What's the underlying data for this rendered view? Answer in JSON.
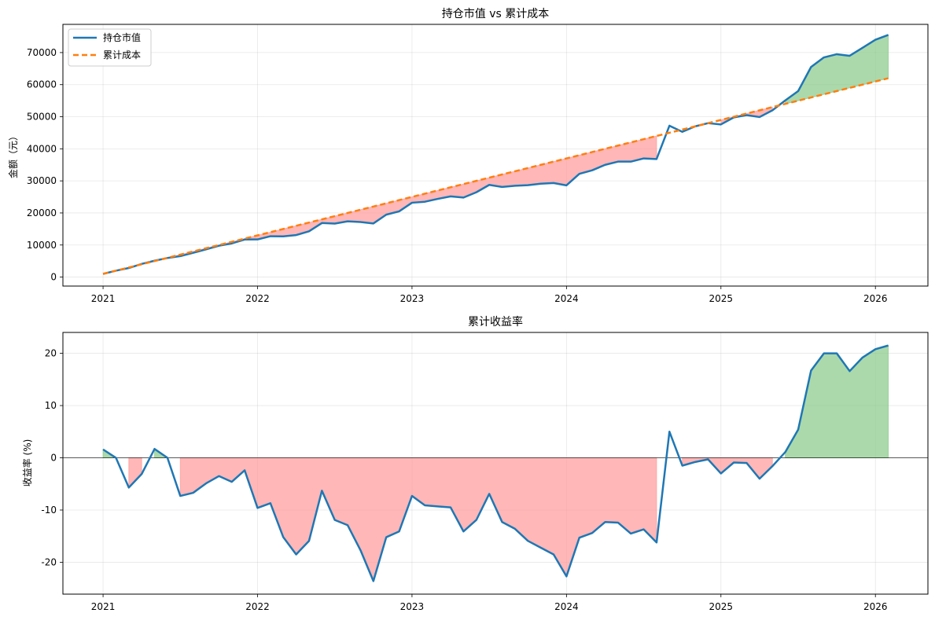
{
  "chart_data": [
    {
      "type": "line",
      "title": "持仓市值 vs 累计成本",
      "xlabel": "",
      "ylabel": "金额（元）",
      "xlim": [
        2020.74,
        2026.34
      ],
      "ylim": [
        -2800,
        78800
      ],
      "x_ticks": [
        {
          "value": 2021,
          "label": "2021"
        },
        {
          "value": 2022,
          "label": "2022"
        },
        {
          "value": 2023,
          "label": "2023"
        },
        {
          "value": 2024,
          "label": "2024"
        },
        {
          "value": 2025,
          "label": "2025"
        },
        {
          "value": 2026,
          "label": "2026"
        }
      ],
      "y_ticks": [
        {
          "value": 0,
          "label": "0"
        },
        {
          "value": 10000,
          "label": "10000"
        },
        {
          "value": 20000,
          "label": "20000"
        },
        {
          "value": 30000,
          "label": "30000"
        },
        {
          "value": 40000,
          "label": "40000"
        },
        {
          "value": 50000,
          "label": "50000"
        },
        {
          "value": 60000,
          "label": "60000"
        },
        {
          "value": 70000,
          "label": "70000"
        }
      ],
      "grid": true,
      "legend_position": "top-left",
      "start_date": "2021-01",
      "months": [
        "2021-01",
        "2021-02",
        "2021-03",
        "2021-04",
        "2021-05",
        "2021-06",
        "2021-07",
        "2021-08",
        "2021-09",
        "2021-10",
        "2021-11",
        "2021-12",
        "2022-01",
        "2022-02",
        "2022-03",
        "2022-04",
        "2022-05",
        "2022-06",
        "2022-07",
        "2022-08",
        "2022-09",
        "2022-10",
        "2022-11",
        "2022-12",
        "2023-01",
        "2023-02",
        "2023-03",
        "2023-04",
        "2023-05",
        "2023-06",
        "2023-07",
        "2023-08",
        "2023-09",
        "2023-10",
        "2023-11",
        "2023-12",
        "2024-01",
        "2024-02",
        "2024-03",
        "2024-04",
        "2024-05",
        "2024-06",
        "2024-07",
        "2024-08",
        "2024-09",
        "2024-10",
        "2024-11",
        "2024-12",
        "2025-01",
        "2025-02",
        "2025-03",
        "2025-04",
        "2025-05",
        "2025-06",
        "2025-07",
        "2025-08",
        "2025-09",
        "2025-10",
        "2025-11",
        "2025-12",
        "2026-01",
        "2026-02"
      ],
      "series": [
        {
          "name": "持仓市值",
          "color": "#1f77b4",
          "style": "solid",
          "values": [
            1000,
            2000,
            2830,
            4100,
            5100,
            5950,
            6530,
            7560,
            8650,
            9770,
            10500,
            11710,
            11740,
            12740,
            12710,
            13110,
            14270,
            16850,
            16680,
            17380,
            17160,
            16720,
            19470,
            20500,
            23190,
            23490,
            24380,
            25160,
            24800,
            26450,
            28750,
            28110,
            28460,
            28670,
            29120,
            29330,
            28600,
            32200,
            33300,
            35000,
            36000,
            36000,
            37000,
            36810,
            47200,
            45300,
            47000,
            48000,
            47600,
            49800,
            50500,
            49900,
            52000,
            55100,
            58000,
            65500,
            68500,
            69500,
            69000,
            71500,
            74000,
            75500
          ]
        },
        {
          "name": "累计成本",
          "color": "#ff7f0e",
          "style": "dashed",
          "values": [
            1000,
            2000,
            3000,
            4000,
            5000,
            6000,
            7000,
            8000,
            9000,
            10000,
            11000,
            12000,
            13000,
            14000,
            15000,
            16000,
            17000,
            18000,
            19000,
            20000,
            21000,
            22000,
            23000,
            24000,
            25000,
            26000,
            27000,
            28000,
            29000,
            30000,
            31000,
            32000,
            33000,
            34000,
            35000,
            36000,
            37000,
            38000,
            39000,
            40000,
            41000,
            42000,
            43000,
            44000,
            45000,
            46000,
            47000,
            48000,
            49000,
            50000,
            51000,
            52000,
            53000,
            54000,
            55000,
            56000,
            57000,
            58000,
            59000,
            60000,
            61000,
            62000
          ]
        }
      ],
      "fill_colors": {
        "loss": "#ff9999",
        "gain": "#88c988"
      }
    },
    {
      "type": "line",
      "title": "累计收益率",
      "xlabel": "",
      "ylabel": "收益率 (%)",
      "xlim": [
        2020.74,
        2026.34
      ],
      "ylim": [
        -26.1,
        24.0
      ],
      "x_ticks": [
        {
          "value": 2021,
          "label": "2021"
        },
        {
          "value": 2022,
          "label": "2022"
        },
        {
          "value": 2023,
          "label": "2023"
        },
        {
          "value": 2024,
          "label": "2024"
        },
        {
          "value": 2025,
          "label": "2025"
        },
        {
          "value": 2026,
          "label": "2026"
        }
      ],
      "y_ticks": [
        {
          "value": -20,
          "label": "-20"
        },
        {
          "value": -10,
          "label": "-10"
        },
        {
          "value": 0,
          "label": "0"
        },
        {
          "value": 10,
          "label": "10"
        },
        {
          "value": 20,
          "label": "20"
        }
      ],
      "grid": true,
      "zero_line": true,
      "start_date": "2021-01",
      "months": [
        "2021-01",
        "2021-02",
        "2021-03",
        "2021-04",
        "2021-05",
        "2021-06",
        "2021-07",
        "2021-08",
        "2021-09",
        "2021-10",
        "2021-11",
        "2021-12",
        "2022-01",
        "2022-02",
        "2022-03",
        "2022-04",
        "2022-05",
        "2022-06",
        "2022-07",
        "2022-08",
        "2022-09",
        "2022-10",
        "2022-11",
        "2022-12",
        "2023-01",
        "2023-02",
        "2023-03",
        "2023-04",
        "2023-05",
        "2023-06",
        "2023-07",
        "2023-08",
        "2023-09",
        "2023-10",
        "2023-11",
        "2023-12",
        "2024-01",
        "2024-02",
        "2024-03",
        "2024-04",
        "2024-05",
        "2024-06",
        "2024-07",
        "2024-08",
        "2024-09",
        "2024-10",
        "2024-11",
        "2024-12",
        "2025-01",
        "2025-02",
        "2025-03",
        "2025-04",
        "2025-05",
        "2025-06",
        "2025-07",
        "2025-08",
        "2025-09",
        "2025-10",
        "2025-11",
        "2025-12",
        "2026-01",
        "2026-02"
      ],
      "series": [
        {
          "name": "收益率",
          "color": "#1f77b4",
          "style": "solid",
          "values": [
            1.6,
            0.0,
            -5.7,
            -3.1,
            1.7,
            0.0,
            -7.3,
            -6.7,
            -4.9,
            -3.5,
            -4.6,
            -2.4,
            -9.6,
            -8.7,
            -15.2,
            -18.5,
            -15.9,
            -6.3,
            -11.9,
            -12.9,
            -17.7,
            -23.6,
            -15.2,
            -14.1,
            -7.3,
            -9.1,
            -9.3,
            -9.5,
            -14.1,
            -11.9,
            -6.9,
            -12.3,
            -13.6,
            -15.9,
            -17.2,
            -18.5,
            -22.7,
            -15.3,
            -14.4,
            -12.3,
            -12.4,
            -14.5,
            -13.7,
            -16.2,
            5.0,
            -1.5,
            -0.8,
            -0.3,
            -3.0,
            -0.9,
            -1.0,
            -4.0,
            -1.6,
            1.1,
            5.4,
            16.7,
            20.0,
            20.0,
            16.6,
            19.2,
            20.8,
            21.5
          ]
        }
      ],
      "fill_colors": {
        "loss": "#ff9999",
        "gain": "#88c988"
      }
    }
  ]
}
